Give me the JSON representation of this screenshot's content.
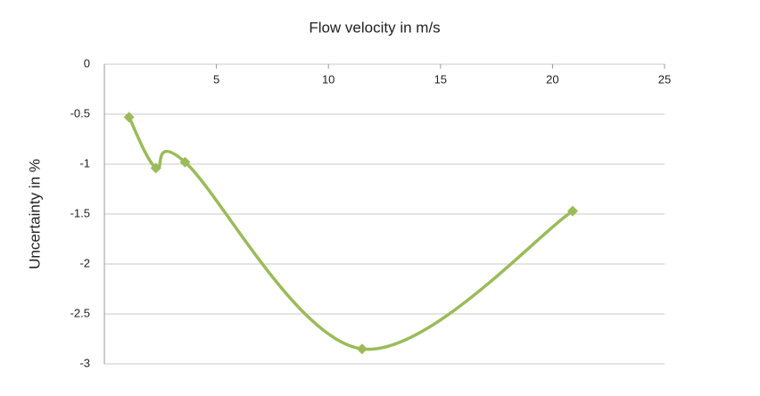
{
  "chart_data": {
    "type": "scatter",
    "title": "Flow velocity in m/s",
    "y_label": "Uncertainty in %",
    "smooth": true,
    "grid": true,
    "x_axis_position": "top",
    "xlim": [
      0,
      25
    ],
    "xticks": [
      5,
      10,
      15,
      20,
      25
    ],
    "ylim": [
      -3,
      0
    ],
    "yticks": [
      0,
      -0.5,
      -1,
      -1.5,
      -2,
      -2.5,
      -3
    ],
    "series": [
      {
        "name": "Uncertainty",
        "color": "#9bbb59",
        "x": [
          1.1,
          2.3,
          3.6,
          11.5,
          20.9
        ],
        "values": [
          -0.53,
          -1.04,
          -0.98,
          -2.85,
          -1.47
        ]
      }
    ]
  }
}
